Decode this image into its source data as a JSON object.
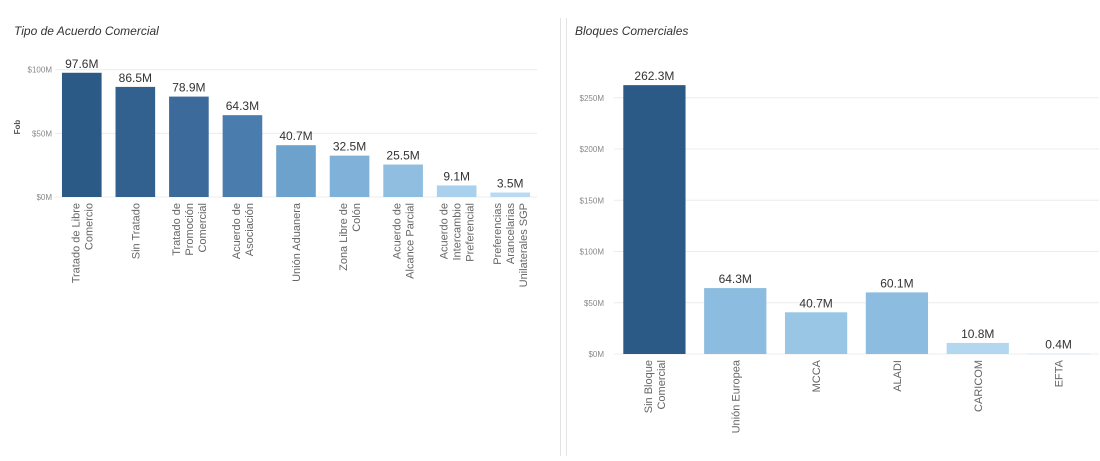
{
  "panels": {
    "left_title": "Tipo de Acuerdo Comercial",
    "right_title": "Bloques Comerciales"
  },
  "colors": {
    "palette": [
      "#2b5a86",
      "#33618f",
      "#3c6b9b",
      "#4a7cae",
      "#6da2cc",
      "#7fb1d9",
      "#90bee0",
      "#a9d0ec",
      "#b8daf2"
    ]
  },
  "chart_data": [
    {
      "type": "bar",
      "title": "Tipo de Acuerdo Comercial",
      "ylabel": "Fob",
      "ylim": [
        0,
        110
      ],
      "yticks": [
        0,
        50,
        100
      ],
      "ytick_labels": [
        "$0M",
        "$50M",
        "$100M"
      ],
      "categories": [
        [
          "Tratado de Libre",
          "Comercio"
        ],
        [
          "Sin Tratado"
        ],
        [
          "Tratado de",
          "Promoción",
          "Comercial"
        ],
        [
          "Acuerdo de",
          "Asociación"
        ],
        [
          "Unión Aduanera"
        ],
        [
          "Zona Libre de",
          "Colón"
        ],
        [
          "Acuerdo de",
          "Alcance Parcial"
        ],
        [
          "Acuerdo de",
          "Intercambio",
          "Preferencial"
        ],
        [
          "Preferencias",
          "Arancelarias",
          "Unilaterales SGP"
        ]
      ],
      "values": [
        97.6,
        86.5,
        78.9,
        64.3,
        40.7,
        32.5,
        25.5,
        9.1,
        3.5
      ],
      "labels": [
        "97.6M",
        "86.5M",
        "78.9M",
        "64.3M",
        "40.7M",
        "32.5M",
        "25.5M",
        "9.1M",
        "3.5M"
      ],
      "colors": [
        "#2b5a86",
        "#33618f",
        "#3c6b9b",
        "#4a7cae",
        "#6da2cc",
        "#7fb1d9",
        "#90bee0",
        "#a9d0ec",
        "#b8daf2"
      ],
      "grid": true
    },
    {
      "type": "bar",
      "title": "Bloques Comerciales",
      "ylabel": "",
      "ylim": [
        0,
        280
      ],
      "yticks": [
        0,
        50,
        100,
        150,
        200,
        250
      ],
      "ytick_labels": [
        "$0M",
        "$50M",
        "$100M",
        "$150M",
        "$200M",
        "$250M"
      ],
      "categories": [
        [
          "Sin Bloque",
          "Comercial"
        ],
        [
          "Unión Europea"
        ],
        [
          "MCCA"
        ],
        [
          "ALADI"
        ],
        [
          "CARICOM"
        ],
        [
          "EFTA"
        ]
      ],
      "values": [
        262.3,
        64.3,
        40.7,
        60.1,
        10.8,
        0.4
      ],
      "labels": [
        "262.3M",
        "64.3M",
        "40.7M",
        "60.1M",
        "10.8M",
        "0.4M"
      ],
      "colors": [
        "#2b5a86",
        "#8cbce0",
        "#9ac6e6",
        "#8cbce0",
        "#b3d7ef",
        "#c9e3f5"
      ],
      "grid": true
    }
  ]
}
